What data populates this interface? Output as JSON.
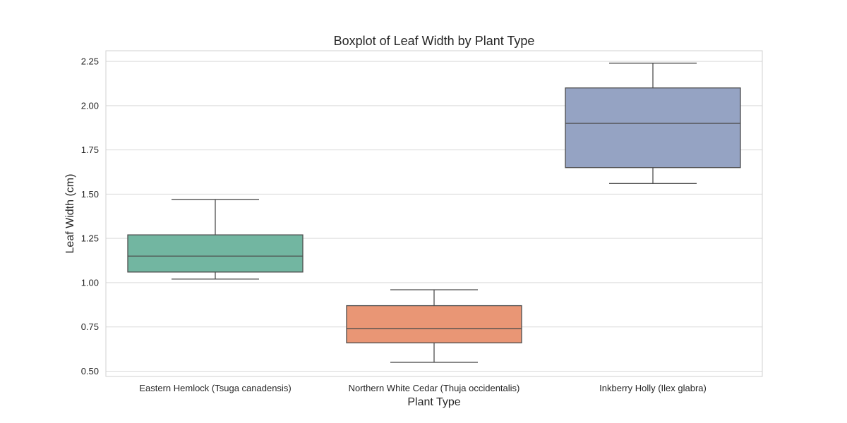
{
  "chart_data": {
    "type": "box",
    "title": "Boxplot of Leaf Width by Plant Type",
    "xlabel": "Plant Type",
    "ylabel": "Leaf Width (cm)",
    "ylim": [
      0.47,
      2.31
    ],
    "yticks": [
      0.5,
      0.75,
      1.0,
      1.25,
      1.5,
      1.75,
      2.0,
      2.25
    ],
    "ytick_labels": [
      "0.50",
      "0.75",
      "1.00",
      "1.25",
      "1.50",
      "1.75",
      "2.00",
      "2.25"
    ],
    "grid": true,
    "categories": [
      "Eastern Hemlock (Tsuga canadensis)",
      "Northern White Cedar (Thuja occidentalis)",
      "Inkberry Holly (Ilex glabra)"
    ],
    "boxes": [
      {
        "category": "Eastern Hemlock (Tsuga canadensis)",
        "whisker_low": 1.02,
        "q1": 1.06,
        "median": 1.15,
        "q3": 1.27,
        "whisker_high": 1.47,
        "color": "#72b6a1"
      },
      {
        "category": "Northern White Cedar (Thuja occidentalis)",
        "whisker_low": 0.55,
        "q1": 0.66,
        "median": 0.74,
        "q3": 0.87,
        "whisker_high": 0.96,
        "color": "#e99675"
      },
      {
        "category": "Inkberry Holly (Ilex glabra)",
        "whisker_low": 1.56,
        "q1": 1.65,
        "median": 1.9,
        "q3": 2.1,
        "whisker_high": 2.24,
        "color": "#95a3c3"
      }
    ],
    "colors": {
      "grid": "#d9d9d9",
      "frame": "#d0d0d0",
      "line": "#4d4d4d",
      "text": "#262626"
    }
  }
}
